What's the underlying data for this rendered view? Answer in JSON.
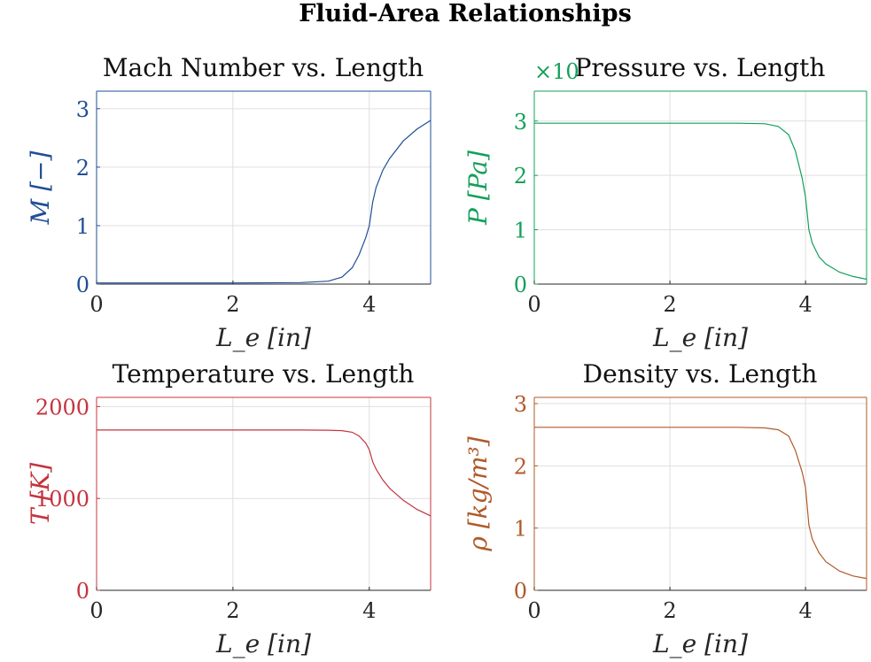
{
  "figure_title": "Fluid-Area Relationships",
  "chart_data": [
    {
      "type": "line",
      "title": "Mach Number vs. Length",
      "xlabel": "L_e [in]",
      "ylabel": "M [−]",
      "color": "#1f4e96",
      "xlim": [
        0,
        4.9
      ],
      "ylim": [
        0,
        3.3
      ],
      "xticks": [
        0,
        2,
        4
      ],
      "yticks": [
        0,
        1,
        2,
        3
      ],
      "ytick_labels": [
        "0",
        "1",
        "2",
        "3"
      ],
      "exponent_label": "",
      "grid": true,
      "x": [
        0,
        1,
        2,
        3,
        3.4,
        3.6,
        3.75,
        3.85,
        3.95,
        4.0,
        4.05,
        4.1,
        4.2,
        4.3,
        4.5,
        4.7,
        4.9
      ],
      "y": [
        0.02,
        0.02,
        0.02,
        0.025,
        0.05,
        0.12,
        0.28,
        0.5,
        0.8,
        1.0,
        1.4,
        1.65,
        1.95,
        2.15,
        2.45,
        2.65,
        2.8
      ]
    },
    {
      "type": "line",
      "title": "Pressure vs. Length",
      "xlabel": "L_e [in]",
      "ylabel": "P [Pa]",
      "color": "#14a05a",
      "xlim": [
        0,
        4.9
      ],
      "ylim": [
        0,
        3.55
      ],
      "xticks": [
        0,
        2,
        4
      ],
      "yticks": [
        0,
        1,
        2,
        3
      ],
      "ytick_labels": [
        "0",
        "1",
        "2",
        "3"
      ],
      "exponent_label": "×10",
      "grid": true,
      "x": [
        0,
        1,
        2,
        3,
        3.4,
        3.6,
        3.75,
        3.85,
        3.95,
        4.0,
        4.05,
        4.1,
        4.2,
        4.3,
        4.5,
        4.7,
        4.9
      ],
      "y": [
        2.96,
        2.96,
        2.96,
        2.96,
        2.95,
        2.9,
        2.75,
        2.45,
        1.95,
        1.6,
        1.0,
        0.75,
        0.5,
        0.37,
        0.22,
        0.14,
        0.09
      ]
    },
    {
      "type": "line",
      "title": "Temperature vs. Length",
      "xlabel": "L_e [in]",
      "ylabel": "T [K]",
      "color": "#c4343f",
      "xlim": [
        0,
        4.9
      ],
      "ylim": [
        0,
        2100
      ],
      "xticks": [
        0,
        2,
        4
      ],
      "yticks": [
        0,
        1000,
        2000
      ],
      "ytick_labels": [
        "0",
        "1000",
        "2000"
      ],
      "exponent_label": "",
      "grid": true,
      "x": [
        0,
        1,
        2,
        3,
        3.4,
        3.6,
        3.75,
        3.85,
        3.95,
        4.0,
        4.05,
        4.1,
        4.2,
        4.3,
        4.5,
        4.7,
        4.9
      ],
      "y": [
        1745,
        1745,
        1745,
        1745,
        1743,
        1738,
        1720,
        1680,
        1600,
        1530,
        1400,
        1320,
        1200,
        1110,
        980,
        880,
        810
      ]
    },
    {
      "type": "line",
      "title": "Density vs. Length",
      "xlabel": "L_e [in]",
      "ylabel": "ρ [kg/m³]",
      "color": "#b05a2a",
      "xlim": [
        0,
        4.9
      ],
      "ylim": [
        0,
        3.1
      ],
      "xticks": [
        0,
        2,
        4
      ],
      "yticks": [
        0,
        1,
        2,
        3
      ],
      "ytick_labels": [
        "0",
        "1",
        "2",
        "3"
      ],
      "exponent_label": "",
      "grid": true,
      "x": [
        0,
        1,
        2,
        3,
        3.4,
        3.6,
        3.75,
        3.85,
        3.95,
        4.0,
        4.05,
        4.1,
        4.2,
        4.3,
        4.5,
        4.7,
        4.9
      ],
      "y": [
        2.62,
        2.62,
        2.62,
        2.62,
        2.61,
        2.58,
        2.48,
        2.25,
        1.9,
        1.65,
        1.05,
        0.82,
        0.6,
        0.46,
        0.31,
        0.23,
        0.19
      ]
    }
  ]
}
